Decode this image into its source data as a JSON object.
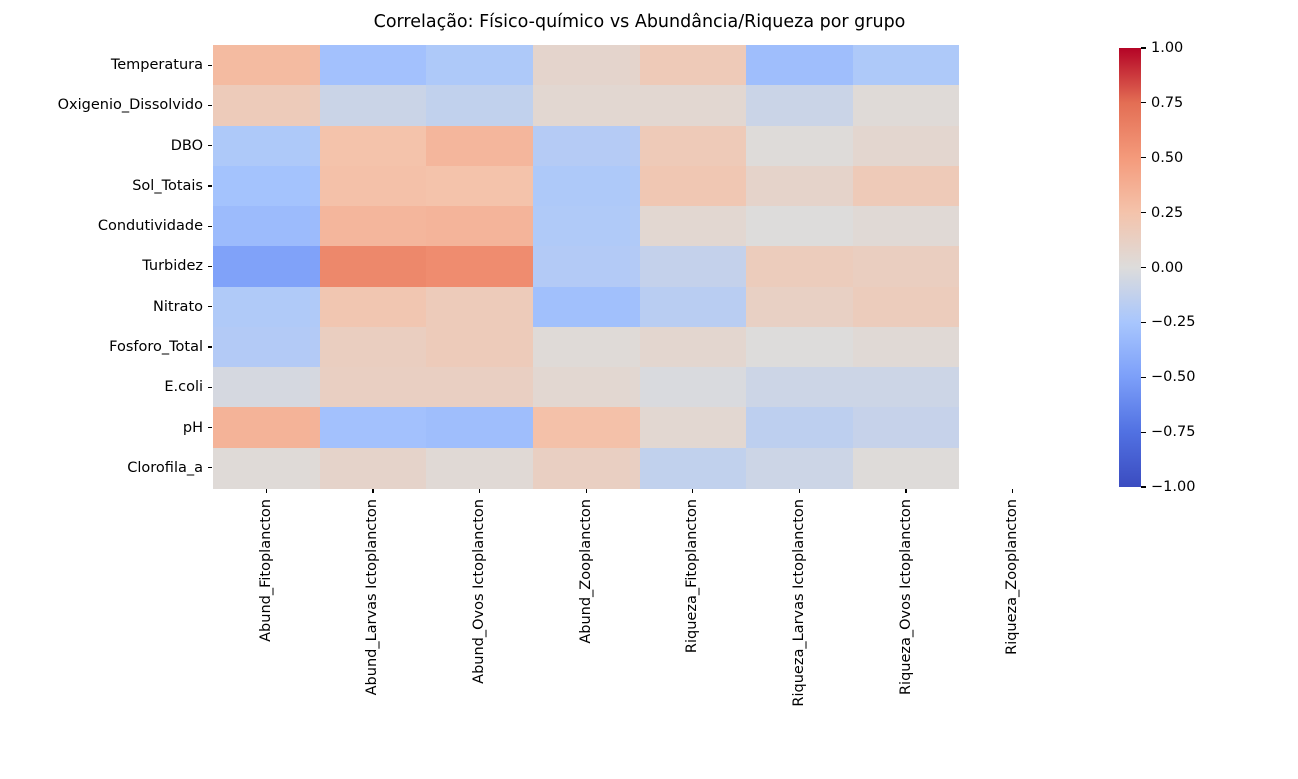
{
  "chart_data": {
    "type": "heatmap",
    "title": "Correlação: Físico-químico vs Abundância/Riqueza por grupo",
    "rows": [
      "Temperatura",
      "Oxigenio_Dissolvido",
      "DBO",
      "Sol_Totais",
      "Condutividade",
      "Turbidez",
      "Nitrato",
      "Fosforo_Total",
      "E.coli",
      "pH",
      "Clorofila_a"
    ],
    "columns": [
      "Abund_Fitoplancton",
      "Abund_Larvas Ictoplancton",
      "Abund_Ovos Ictoplancton",
      "Abund_Zooplancton",
      "Riqueza_Fitoplancton",
      "Riqueza_Larvas Ictoplancton",
      "Riqueza_Ovos Ictoplancton",
      "Riqueza_Zooplancton"
    ],
    "values": [
      [
        0.3,
        -0.28,
        -0.22,
        0.08,
        0.18,
        -0.3,
        -0.22,
        null
      ],
      [
        0.17,
        -0.09,
        -0.13,
        0.05,
        0.05,
        -0.09,
        0.02,
        null
      ],
      [
        -0.22,
        0.25,
        0.33,
        -0.19,
        0.18,
        0.01,
        0.06,
        null
      ],
      [
        -0.27,
        0.26,
        0.25,
        -0.22,
        0.21,
        0.09,
        0.18,
        null
      ],
      [
        -0.32,
        0.33,
        0.34,
        -0.21,
        0.05,
        0.0,
        0.03,
        null
      ],
      [
        -0.48,
        0.6,
        0.58,
        -0.2,
        -0.12,
        0.16,
        0.14,
        null
      ],
      [
        -0.21,
        0.22,
        0.17,
        -0.29,
        -0.17,
        0.12,
        0.16,
        null
      ],
      [
        -0.2,
        0.14,
        0.17,
        0.02,
        0.06,
        0.0,
        0.03,
        null
      ],
      [
        -0.04,
        0.13,
        0.13,
        0.05,
        -0.02,
        -0.08,
        -0.08,
        null
      ],
      [
        0.35,
        -0.28,
        -0.3,
        0.26,
        0.05,
        -0.15,
        -0.11,
        null
      ],
      [
        0.02,
        0.09,
        0.03,
        0.13,
        -0.13,
        -0.08,
        0.01,
        null
      ]
    ],
    "colormap": "coolwarm",
    "vmin": -1,
    "vmax": 1,
    "nan_color": "#ffffff",
    "colorbar": {
      "ticks": [
        "1.00",
        "0.75",
        "0.50",
        "0.25",
        "0.00",
        "−0.25",
        "−0.50",
        "−0.75",
        "−1.00"
      ]
    },
    "colors": {
      "negative_extreme": "#3b4cc0",
      "midpoint": "#dddcdb",
      "positive_extreme": "#b40426",
      "text": "#000000",
      "background": "#ffffff"
    }
  }
}
